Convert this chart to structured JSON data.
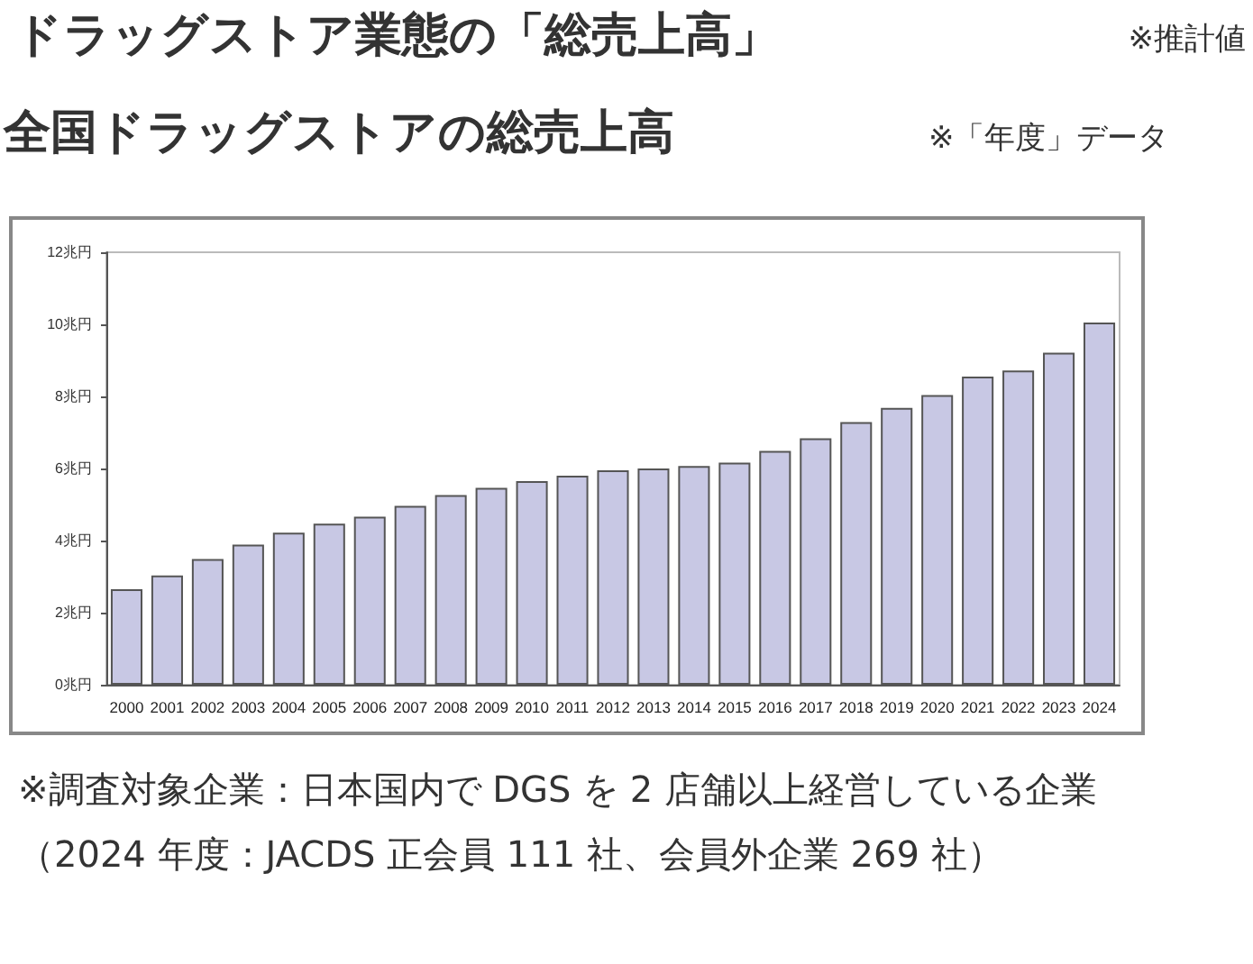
{
  "chart_data": {
    "type": "bar",
    "title": "ドラッグストア業態の「総売上高」",
    "subtitle": "全国ドラッグストアの総売上高",
    "annotations": [
      "※推計値",
      "※「年度」データ",
      "※調査対象企業：日本国内で DGS を 2 店舗以上経営している企業（2024 年度：JACDS 正会員 111 社、会員外企業 269 社）"
    ],
    "categories": [
      "2000",
      "2001",
      "2002",
      "2003",
      "2004",
      "2005",
      "2006",
      "2007",
      "2008",
      "2009",
      "2010",
      "2011",
      "2012",
      "2013",
      "2014",
      "2015",
      "2016",
      "2017",
      "2018",
      "2019",
      "2020",
      "2021",
      "2022",
      "2023",
      "2024"
    ],
    "values": [
      2.65,
      3.03,
      3.49,
      3.89,
      4.22,
      4.47,
      4.66,
      4.96,
      5.26,
      5.46,
      5.65,
      5.8,
      5.95,
      6.0,
      6.07,
      6.16,
      6.49,
      6.84,
      7.29,
      7.68,
      8.04,
      8.55,
      8.72,
      9.21,
      10.05
    ],
    "color": "#c8c8e4",
    "ylim": [
      0,
      12
    ],
    "yticks": [
      {
        "value": 0,
        "label": "0兆円"
      },
      {
        "value": 2,
        "label": "2兆円"
      },
      {
        "value": 4,
        "label": "4兆円"
      },
      {
        "value": 6,
        "label": "6兆円"
      },
      {
        "value": 8,
        "label": "8兆円"
      },
      {
        "value": 10,
        "label": "10兆円"
      },
      {
        "value": 12,
        "label": "12兆円"
      }
    ],
    "grid": false
  }
}
